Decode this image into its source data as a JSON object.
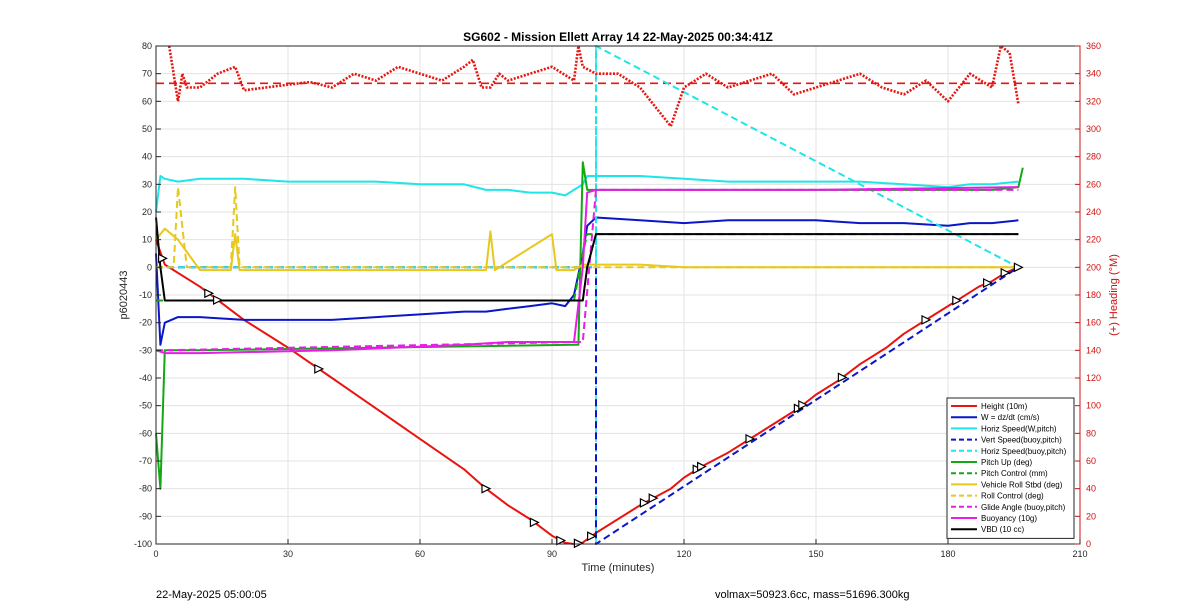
{
  "chart_data": {
    "type": "line",
    "title": "SG602 - Mission Ellett Array 14 22-May-2025 00:34:41Z",
    "xlabel": "Time (minutes)",
    "ylabel": "p6020443",
    "y2label": "(+) Heading (°M)",
    "xlim": [
      0,
      210
    ],
    "ylim": [
      -100,
      80
    ],
    "y2lim": [
      0,
      360
    ],
    "xticks": [
      "0",
      "30",
      "60",
      "90",
      "120",
      "150",
      "180",
      "210"
    ],
    "yticks": [
      "80",
      "70",
      "60",
      "50",
      "40",
      "30",
      "20",
      "10",
      "0",
      "-10",
      "-20",
      "-30",
      "-40",
      "-50",
      "-60",
      "-70",
      "-80",
      "-90",
      "-100"
    ],
    "y2ticks": [
      "360",
      "340",
      "320",
      "300",
      "280",
      "260",
      "240",
      "220",
      "200",
      "180",
      "160",
      "140",
      "120",
      "100",
      "80",
      "60",
      "40",
      "20",
      "0"
    ],
    "grid": true,
    "legend_position": "bottom-right",
    "series": [
      {
        "name": "Height (10m)",
        "color": "#e8140f",
        "style": "solid",
        "x": [
          0,
          2,
          10,
          20,
          30,
          40,
          50,
          60,
          70,
          75,
          80,
          85,
          90,
          93,
          95,
          97,
          100,
          110,
          117,
          120,
          124,
          130,
          135,
          140,
          146,
          150,
          155,
          160,
          166,
          170,
          176,
          180,
          183,
          187,
          190,
          193,
          196
        ],
        "y": [
          10,
          1,
          -7,
          -19,
          -29,
          -40,
          -51,
          -62,
          -73,
          -80,
          -86,
          -91,
          -97,
          -99.6,
          -100,
          -99.5,
          -96,
          -86,
          -80,
          -76,
          -72,
          -67,
          -62,
          -57,
          -51,
          -46,
          -41,
          -35,
          -29,
          -24,
          -18,
          -14,
          -11,
          -7,
          -5,
          -2,
          0
        ]
      },
      {
        "name": "W = dz/dt (cm/s)",
        "color": "#0a16c8",
        "style": "solid",
        "x": [
          0,
          1,
          2,
          5,
          10,
          20,
          30,
          40,
          50,
          60,
          70,
          75,
          80,
          85,
          90,
          93,
          95,
          97,
          98,
          100,
          110,
          120,
          130,
          140,
          150,
          160,
          170,
          180,
          185,
          190,
          196
        ],
        "y": [
          5,
          -28,
          -20,
          -18,
          -18,
          -19,
          -19,
          -19,
          -18,
          -17,
          -16,
          -16,
          -15,
          -14,
          -13,
          -14,
          -10,
          5,
          15,
          18,
          17,
          16,
          17,
          17,
          17,
          16,
          16,
          15,
          16,
          16,
          17
        ]
      },
      {
        "name": "Horiz Speed(W,pitch)",
        "color": "#1ee6e6",
        "style": "solid",
        "x": [
          0,
          1,
          2,
          5,
          10,
          20,
          30,
          40,
          50,
          60,
          70,
          75,
          80,
          85,
          90,
          93,
          95,
          97,
          98,
          100,
          110,
          120,
          130,
          140,
          150,
          160,
          170,
          180,
          185,
          190,
          196
        ],
        "y": [
          20,
          33,
          32,
          31,
          32,
          32,
          31,
          31,
          31,
          30,
          30,
          28,
          28,
          27,
          27,
          26,
          28,
          30,
          33,
          33,
          33,
          32,
          31,
          31,
          31,
          31,
          30,
          29,
          30,
          30,
          31
        ]
      },
      {
        "name": "Vert Speed(buoy,pitch)",
        "color": "#0a16c8",
        "style": "dashed",
        "x": [
          0,
          100,
          100,
          196
        ],
        "y": [
          0,
          0,
          -100,
          0
        ]
      },
      {
        "name": "Horiz Speed(buoy,pitch)",
        "color": "#1ee6e6",
        "style": "dashed",
        "x": [
          0,
          100,
          100,
          196
        ],
        "y": [
          0,
          0,
          80,
          0
        ]
      },
      {
        "name": "Pitch Up (deg)",
        "color": "#12a812",
        "style": "solid",
        "x": [
          0,
          1,
          2,
          5,
          10,
          95,
          96,
          97,
          98,
          100,
          110,
          150,
          190,
          196,
          197
        ],
        "y": [
          -60,
          -80,
          -30,
          -30,
          -30,
          -28,
          -28,
          38,
          28,
          28,
          28,
          28,
          28,
          29,
          36
        ]
      },
      {
        "name": "Pitch Control (mm)",
        "color": "#12a812",
        "style": "dashed",
        "x": [
          0,
          2,
          95,
          97,
          98,
          100,
          196
        ],
        "y": [
          -12,
          -12,
          -12,
          5,
          12,
          12,
          12
        ]
      },
      {
        "name": "Vehicle Roll Stbd (deg)",
        "color": "#e6c81e",
        "style": "solid",
        "x": [
          0,
          2,
          5,
          10,
          17,
          18,
          19,
          20,
          50,
          75,
          76,
          77,
          90,
          91,
          92,
          93,
          95,
          97,
          100,
          110,
          120,
          140,
          150,
          170,
          180,
          185,
          190,
          196
        ],
        "y": [
          10,
          14,
          10,
          -1,
          -1,
          12,
          -1,
          -1,
          -1,
          -1,
          13,
          -1,
          12,
          -1,
          -1,
          -1,
          -1,
          1,
          1,
          1,
          0,
          0,
          0,
          0,
          0,
          0,
          0,
          0
        ]
      },
      {
        "name": "Roll Control (deg)",
        "color": "#e6c81e",
        "style": "dashed",
        "x": [
          0,
          4,
          5,
          7,
          8,
          17,
          18,
          19,
          20,
          90,
          95,
          100,
          196
        ],
        "y": [
          0,
          0,
          29,
          0,
          0,
          0,
          29,
          0,
          0,
          0,
          0,
          0,
          0
        ]
      },
      {
        "name": "Glide Angle (buoy,pitch)",
        "color": "#e61ee6",
        "style": "dashed",
        "x": [
          0,
          2,
          95,
          97,
          100,
          196
        ],
        "y": [
          -30,
          -30,
          -27,
          -27,
          28,
          28
        ]
      },
      {
        "name": "Buoyancy (10g)",
        "color": "#e61ee6",
        "style": "solid",
        "x": [
          0,
          2,
          10,
          40,
          70,
          80,
          95,
          97,
          98,
          100,
          150,
          196
        ],
        "y": [
          -30,
          -31,
          -31,
          -30,
          -28,
          -27,
          -27,
          0,
          27,
          28,
          28,
          29
        ]
      },
      {
        "name": "VBD (10 cc)",
        "color": "#000000",
        "style": "solid",
        "x": [
          0,
          1,
          2,
          95,
          97,
          98,
          100,
          196
        ],
        "y": [
          18,
          0,
          -12,
          -12,
          -12,
          0,
          12,
          12
        ]
      },
      {
        "name": "Heading (deg)",
        "color": "#e8140f",
        "style": "dotted-solid",
        "axis": "right",
        "x": [
          3,
          4,
          5,
          6,
          7,
          10,
          14,
          18,
          20,
          25,
          30,
          35,
          40,
          45,
          50,
          55,
          60,
          65,
          70,
          72,
          74,
          76,
          78,
          80,
          85,
          90,
          95,
          96,
          97,
          100,
          105,
          110,
          115,
          117,
          120,
          125,
          130,
          135,
          140,
          145,
          150,
          155,
          160,
          165,
          170,
          175,
          180,
          185,
          190,
          192,
          194,
          196
        ],
        "y": [
          360,
          340,
          320,
          340,
          330,
          330,
          340,
          345,
          328,
          330,
          332,
          334,
          330,
          340,
          335,
          345,
          340,
          335,
          345,
          350,
          330,
          330,
          340,
          335,
          340,
          345,
          335,
          360,
          345,
          340,
          340,
          330,
          310,
          302,
          330,
          340,
          330,
          335,
          340,
          325,
          330,
          335,
          340,
          330,
          325,
          335,
          320,
          340,
          330,
          360,
          355,
          318
        ]
      }
    ],
    "reference_lines": [
      {
        "orientation": "horizontal",
        "axis": "right",
        "value": 333,
        "color": "#e8140f",
        "style": "dashed"
      },
      {
        "orientation": "vertical",
        "value": 100,
        "color": "#1ee6e6",
        "style": "dashed"
      }
    ]
  },
  "footer": {
    "left": "22-May-2025 05:00:05",
    "right": "volmax=50923.6cc, mass=51696.300kg"
  }
}
